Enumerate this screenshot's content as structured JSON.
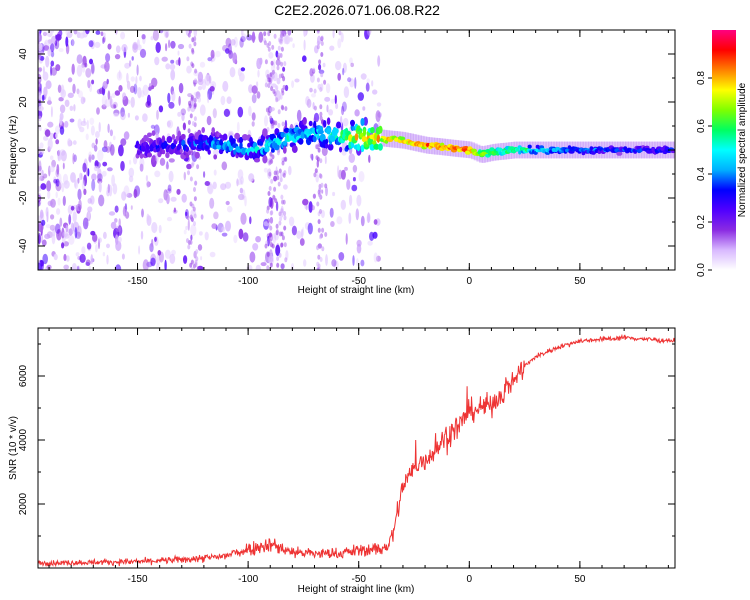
{
  "title": "C2E2.2026.071.06.08.R22",
  "chart_data": [
    {
      "type": "heatmap",
      "xlabel": "Height of straight line (km)",
      "ylabel": "Frequency (Hz)",
      "xlim": [
        -195,
        93
      ],
      "ylim": [
        -50,
        50
      ],
      "xticks": [
        -150,
        -100,
        -50,
        0,
        50
      ],
      "yticks": [
        -40,
        -20,
        0,
        20,
        40
      ],
      "colorbar": {
        "label": "Normalized spectral amplitude",
        "range": [
          0,
          1
        ],
        "ticks": [
          "0.0",
          "0.2",
          "0.4",
          "0.6",
          "0.8"
        ],
        "tick_values": [
          0,
          0.2,
          0.4,
          0.6,
          0.8
        ],
        "colors": [
          "#ffffff",
          "#d8b8ff",
          "#8a2be2",
          "#5000ff",
          "#0000ff",
          "#00b0ff",
          "#00ffff",
          "#00ff60",
          "#7fff00",
          "#ffff00",
          "#ff8000",
          "#ff0000",
          "#ff0080"
        ]
      },
      "ridge": {
        "x": [
          -145,
          -130,
          -120,
          -110,
          -100,
          -90,
          -80,
          -70,
          -60,
          -50,
          -40,
          -30,
          -20,
          -10,
          0,
          5,
          10,
          20,
          30,
          40,
          50,
          60,
          70,
          80,
          93
        ],
        "y": [
          1,
          2,
          3,
          2,
          0,
          2,
          6,
          7,
          6,
          5,
          5,
          4,
          2,
          1,
          0,
          -2,
          -1,
          0,
          0,
          0,
          0,
          0,
          0,
          0,
          0
        ],
        "amplitude": [
          0.3,
          0.35,
          0.4,
          0.45,
          0.45,
          0.5,
          0.5,
          0.5,
          0.55,
          0.75,
          0.8,
          0.8,
          0.85,
          0.85,
          0.9,
          0.7,
          0.65,
          0.6,
          0.5,
          0.45,
          0.4,
          0.38,
          0.36,
          0.35,
          0.35
        ]
      }
    },
    {
      "type": "line",
      "xlabel": "Height of straight line (km)",
      "ylabel": "SNR (10 * v/v)",
      "xlim": [
        -195,
        93
      ],
      "ylim": [
        0,
        7500
      ],
      "xticks": [
        -150,
        -100,
        -50,
        0,
        50
      ],
      "yticks": [
        2000,
        4000,
        6000
      ],
      "series": [
        {
          "color": "#ee3333",
          "x": [
            -195,
            -170,
            -150,
            -130,
            -120,
            -110,
            -100,
            -90,
            -80,
            -70,
            -60,
            -50,
            -40,
            -35,
            -30,
            -25,
            -20,
            -15,
            -10,
            -5,
            0,
            5,
            10,
            15,
            20,
            25,
            30,
            40,
            50,
            60,
            70,
            80,
            93
          ],
          "y": [
            150,
            180,
            200,
            260,
            300,
            380,
            600,
            750,
            500,
            450,
            450,
            550,
            600,
            900,
            2600,
            3100,
            3400,
            3700,
            4200,
            4400,
            4900,
            5000,
            5100,
            5500,
            5900,
            6300,
            6600,
            6900,
            7100,
            7150,
            7200,
            7150,
            7100
          ]
        }
      ]
    }
  ]
}
